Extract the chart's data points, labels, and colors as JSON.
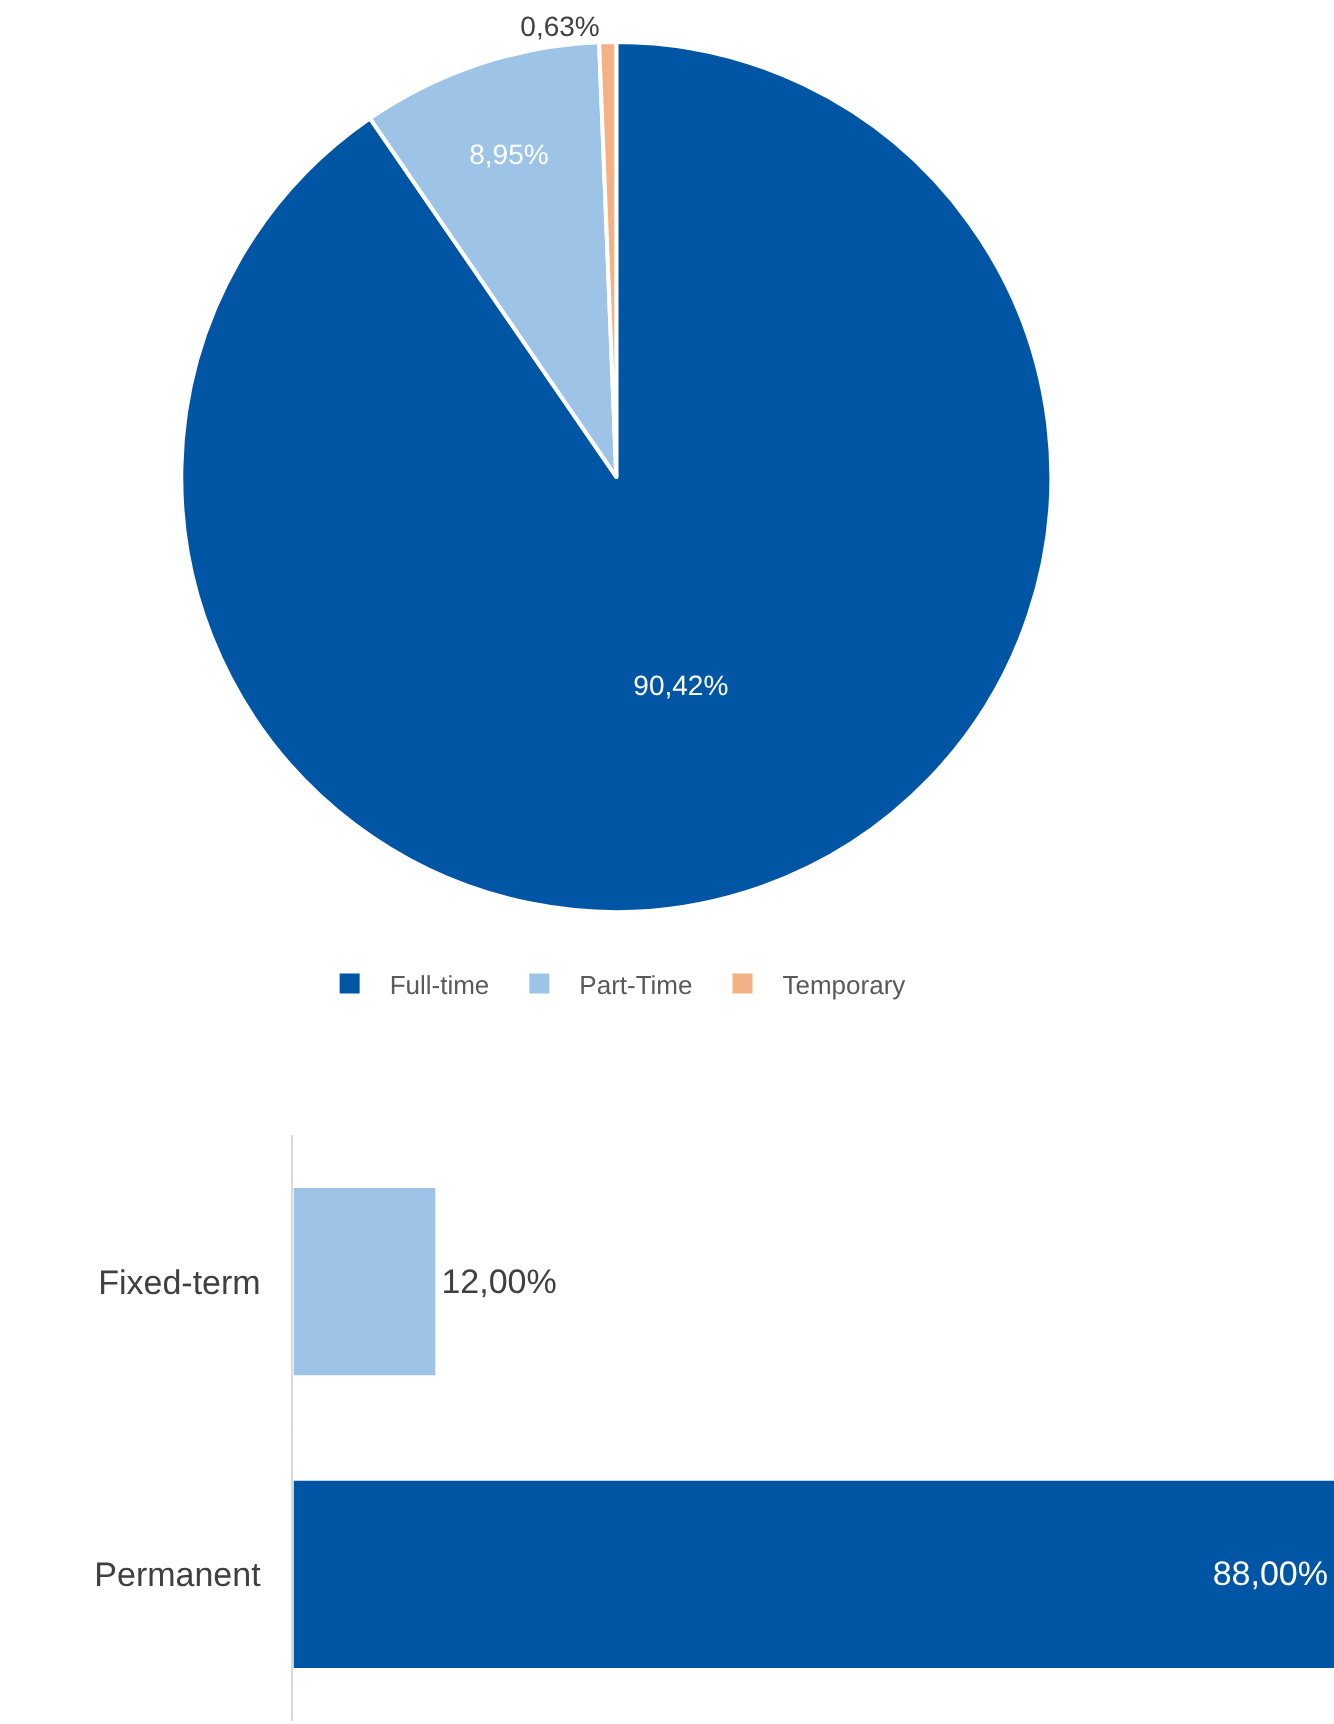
{
  "chart_data": [
    {
      "type": "pie",
      "categories": [
        "Full-time",
        "Part-Time",
        "Temporary"
      ],
      "values": [
        90.42,
        8.95,
        0.63
      ],
      "colors": [
        "#0055a5",
        "#9dc3e6",
        "#f4b183"
      ],
      "value_labels": [
        "90,42%",
        "8,95%",
        "0,63%"
      ],
      "legend": "bottom"
    },
    {
      "type": "bar",
      "orientation": "horizontal",
      "categories": [
        "Fixed-term",
        "Permanent"
      ],
      "values": [
        12.0,
        88.0
      ],
      "colors": [
        "#9dc3e6",
        "#0055a5"
      ],
      "value_labels": [
        "12,00%",
        "88,00%"
      ]
    }
  ]
}
